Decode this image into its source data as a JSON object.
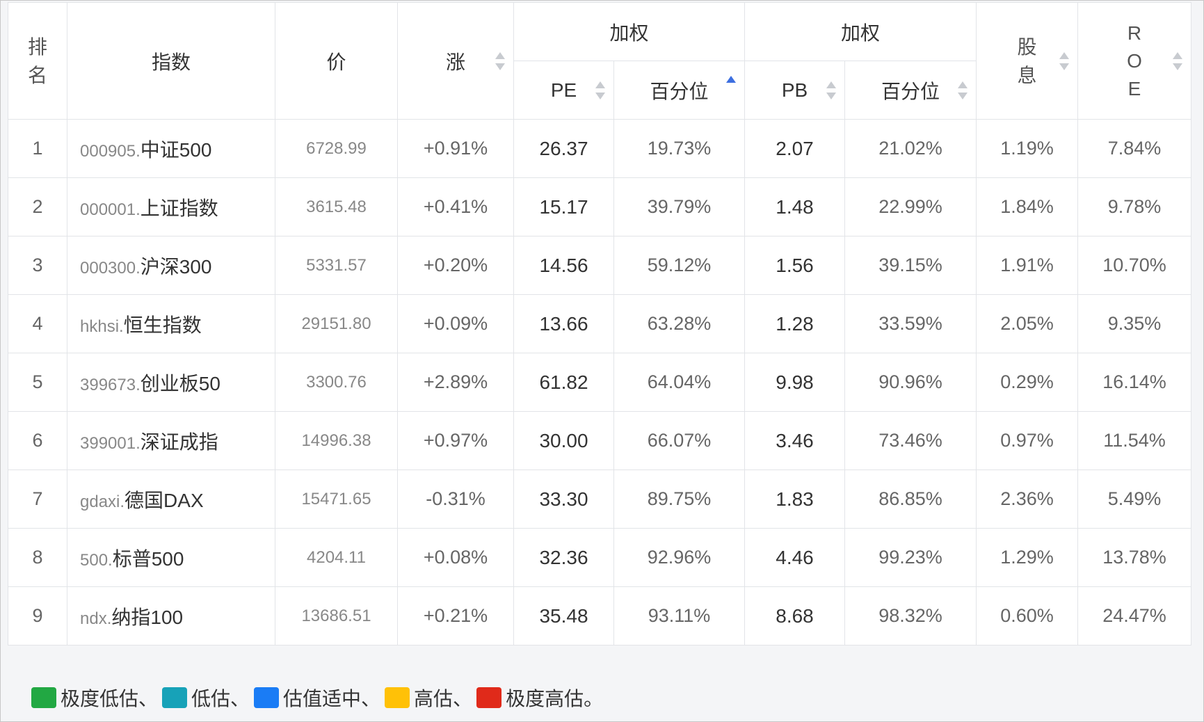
{
  "header": {
    "rank": [
      "排",
      "名"
    ],
    "index": "指数",
    "price": "价",
    "change": "涨",
    "weighted_pe_group": "加权",
    "weighted_pb_group": "加权",
    "pe": "PE",
    "pe_percentile": "百分位",
    "pb": "PB",
    "pb_percentile": "百分位",
    "dividend": [
      "股",
      "息"
    ],
    "roe": [
      "R",
      "O",
      "E"
    ]
  },
  "rows": [
    {
      "rank": "1",
      "code": "000905.",
      "name": "中证500",
      "price": "6728.99",
      "change": "+0.91%",
      "pe": "26.37",
      "pe_pct": "19.73%",
      "pe_level": "extreme-low",
      "pb": "2.07",
      "pb_pct": "21.02%",
      "pb_level": "low",
      "dividend": "1.19%",
      "roe": "7.84%"
    },
    {
      "rank": "2",
      "code": "000001.",
      "name": "上证指数",
      "price": "3615.48",
      "change": "+0.41%",
      "pe": "15.17",
      "pe_pct": "39.79%",
      "pe_level": "low",
      "pb": "1.48",
      "pb_pct": "22.99%",
      "pb_level": "low",
      "dividend": "1.84%",
      "roe": "9.78%"
    },
    {
      "rank": "3",
      "code": "000300.",
      "name": "沪深300",
      "price": "5331.57",
      "change": "+0.20%",
      "pe": "14.56",
      "pe_pct": "59.12%",
      "pe_level": "fair",
      "pb": "1.56",
      "pb_pct": "39.15%",
      "pb_level": "low",
      "dividend": "1.91%",
      "roe": "10.70%"
    },
    {
      "rank": "4",
      "code": "hkhsi.",
      "name": "恒生指数",
      "price": "29151.80",
      "change": "+0.09%",
      "pe": "13.66",
      "pe_pct": "63.28%",
      "pe_level": "high",
      "pb": "1.28",
      "pb_pct": "33.59%",
      "pb_level": "low",
      "dividend": "2.05%",
      "roe": "9.35%"
    },
    {
      "rank": "5",
      "code": "399673.",
      "name": "创业板50",
      "price": "3300.76",
      "change": "+2.89%",
      "pe": "61.82",
      "pe_pct": "64.04%",
      "pe_level": "high",
      "pb": "9.98",
      "pb_pct": "90.96%",
      "pb_level": "extreme-high",
      "dividend": "0.29%",
      "roe": "16.14%"
    },
    {
      "rank": "6",
      "code": "399001.",
      "name": "深证成指",
      "price": "14996.38",
      "change": "+0.97%",
      "pe": "30.00",
      "pe_pct": "66.07%",
      "pe_level": "high",
      "pb": "3.46",
      "pb_pct": "73.46%",
      "pb_level": "high",
      "dividend": "0.97%",
      "roe": "11.54%"
    },
    {
      "rank": "7",
      "code": "gdaxi.",
      "name": "德国DAX",
      "price": "15471.65",
      "change": "-0.31%",
      "pe": "33.30",
      "pe_pct": "89.75%",
      "pe_level": "extreme-high",
      "pb": "1.83",
      "pb_pct": "86.85%",
      "pb_level": "extreme-high",
      "dividend": "2.36%",
      "roe": "5.49%"
    },
    {
      "rank": "8",
      "code": "500.",
      "name": "标普500",
      "price": "4204.11",
      "change": "+0.08%",
      "pe": "32.36",
      "pe_pct": "92.96%",
      "pe_level": "extreme-high",
      "pb": "4.46",
      "pb_pct": "99.23%",
      "pb_level": "extreme-high",
      "dividend": "1.29%",
      "roe": "13.78%"
    },
    {
      "rank": "9",
      "code": "ndx.",
      "name": "纳指100",
      "price": "13686.51",
      "change": "+0.21%",
      "pe": "35.48",
      "pe_pct": "93.11%",
      "pe_level": "extreme-high",
      "pb": "8.68",
      "pb_pct": "98.32%",
      "pb_level": "extreme-high",
      "dividend": "0.60%",
      "roe": "24.47%"
    }
  ],
  "level_colors": {
    "extreme-low": "#2ba84a",
    "low": "#1aa2c2",
    "fair": "#1a7cf5",
    "high": "#f8b91c",
    "extreme-high": "#e63a3a"
  },
  "legend": [
    {
      "label": "极度低估、",
      "color": "#22a843"
    },
    {
      "label": "低估、",
      "color": "#17a2b8"
    },
    {
      "label": "估值适中、",
      "color": "#1a7cf5"
    },
    {
      "label": "高估、",
      "color": "#ffc107"
    },
    {
      "label": "极度高估。",
      "color": "#e02a1a"
    }
  ]
}
